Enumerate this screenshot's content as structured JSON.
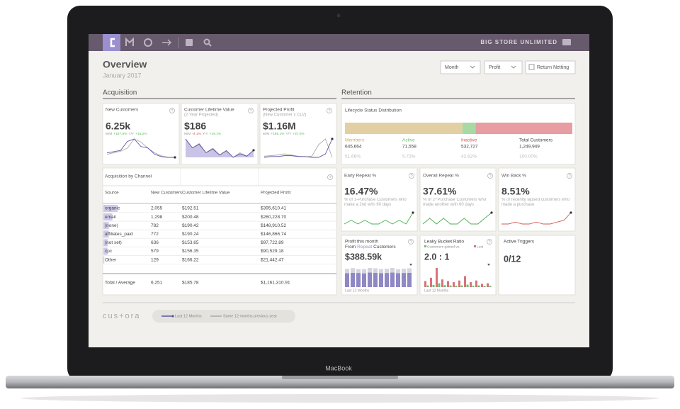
{
  "device_label": "MacBook",
  "nav": {
    "brand": "BIG STORE UNLIMITED"
  },
  "header": {
    "title": "Overview",
    "subtitle": "January 2017"
  },
  "controls": {
    "period": "Month",
    "metric": "Profit",
    "checkbox": "Return Netting"
  },
  "acquisition": {
    "title": "Acquisition",
    "kpis": [
      {
        "title": "New Customers",
        "value": "6.25k",
        "mm_label": "M/M",
        "mm": "+167.5%",
        "yy_label": "Y/Y",
        "yy": "+15.2%",
        "trend": [
          12,
          14,
          16,
          30,
          34,
          22,
          20,
          10,
          6,
          5,
          5
        ],
        "trend_prev": [
          8,
          9,
          10,
          12,
          18,
          16,
          12,
          9,
          7,
          6,
          6
        ]
      },
      {
        "title": "Customer Lifetime Value",
        "subtitle": "(2 Year Projected)",
        "value": "$186",
        "mm_label": "M/M",
        "mm": "-4.1%",
        "yy_label": "Y/Y",
        "yy": "+19.1%",
        "trend": [
          75,
          60,
          66,
          52,
          58,
          48,
          55,
          44,
          50,
          46,
          56
        ],
        "trend_prev": [
          50,
          42,
          46,
          38,
          42,
          36,
          40,
          34,
          38,
          35,
          40
        ]
      },
      {
        "title": "Projected Profit",
        "subtitle": "(New Customer x CLV)",
        "value": "$1.16M",
        "mm_label": "M/M",
        "mm": "+185.1%",
        "yy_label": "Y/Y",
        "yy": "+37.0%",
        "trend": [
          8,
          9,
          9,
          10,
          10,
          9,
          9,
          8,
          8,
          12,
          30
        ],
        "trend_prev": [
          10,
          11,
          12,
          14,
          12,
          10,
          9,
          10,
          30,
          40,
          8
        ]
      }
    ],
    "channels": {
      "title": "Acquisition by Channel",
      "columns": [
        "Source",
        "New Customers",
        "Customer Lifetime Value",
        "Projected Profit"
      ],
      "rows": [
        [
          "organic",
          "2,055",
          "$192.51",
          "$395,610.41"
        ],
        [
          "email",
          "1,298",
          "$200.48",
          "$260,228.70"
        ],
        [
          "(none)",
          "782",
          "$190.42",
          "$148,910.52"
        ],
        [
          "affiliates_paid",
          "772",
          "$190.24",
          "$146,866.74"
        ],
        [
          "(not set)",
          "636",
          "$153.65",
          "$97,722.89"
        ],
        [
          "cpc",
          "579",
          "$156.35",
          "$90,529.18"
        ],
        [
          "Other",
          "129",
          "$166.22",
          "$21,442.47"
        ]
      ],
      "total": [
        "Total / Average",
        "6,251",
        "$185.78",
        "$1,161,310.91"
      ]
    }
  },
  "retention": {
    "title": "Retention",
    "lifecycle": {
      "title": "Lifecycle Status Distribution",
      "segments": [
        {
          "name": "Members",
          "color": "#e3cfa4",
          "count": "645,664",
          "share": {
            "value": 51.66,
            "label": "51.66%"
          }
        },
        {
          "name": "Active",
          "color": "#a8d9a4",
          "count": "71,558",
          "share": {
            "value": 5.72,
            "label": "5.72%"
          }
        },
        {
          "name": "Inactive",
          "color": "#e79da1",
          "count": "532,727",
          "share": {
            "value": 42.62,
            "label": "42.62%"
          }
        }
      ],
      "total": {
        "name": "Total Customers",
        "count": "1,249,949",
        "share": {
          "value": 100,
          "label": "100.00%"
        }
      }
    },
    "rates": [
      {
        "title": "Early Repeat %",
        "value": "16.47%",
        "description": "% of 1-Purchase Customers who make a 2nd w/in 60 days",
        "color": "#4caf50",
        "trend": [
          10,
          11,
          10,
          11,
          10,
          10,
          11,
          10,
          11,
          10,
          13
        ]
      },
      {
        "title": "Overall Repeat %",
        "value": "37.61%",
        "description": "% of 2+Purchase Customers who made another w/in 60 days",
        "color": "#4caf50",
        "trend": [
          12,
          13,
          12,
          13,
          12,
          12,
          13,
          12,
          12,
          13,
          14
        ]
      },
      {
        "title": "Win Back %",
        "value": "8.51%",
        "description": "% of recently lapsed customers who made a purchase",
        "color": "#d9534f",
        "trend": [
          10,
          10,
          11,
          10,
          10,
          11,
          10,
          10,
          11,
          12,
          16
        ]
      }
    ],
    "profit": {
      "title": "Profit this month",
      "subtitle_prefix": "From",
      "highlight": "Repeat",
      "subtitle_suffix": "Customers",
      "value": "$388.59k",
      "footer": "Last 12 Months",
      "bars": [
        72,
        74,
        73,
        71,
        75,
        74,
        72,
        73,
        75,
        72,
        73,
        74
      ],
      "bars_prev": [
        22,
        24,
        20,
        22,
        24,
        23,
        21,
        22,
        24,
        20,
        22,
        23
      ]
    },
    "leaky": {
      "title": "Leaky Bucket Ratio",
      "legend": [
        {
          "name": "Customers gained vs.",
          "color": "#6cc070"
        },
        {
          "name": "Lost",
          "color": "#d9727a"
        }
      ],
      "value": "2.0 : 1",
      "footer": "Last 12 Months",
      "gained": [
        6,
        8,
        14,
        7,
        6,
        5,
        6,
        9,
        5,
        6,
        4,
        5
      ],
      "lost": [
        22,
        34,
        70,
        28,
        22,
        18,
        24,
        40,
        18,
        24,
        12,
        14
      ]
    },
    "triggers": {
      "title": "Active Triggers",
      "value": "0/12"
    }
  },
  "footer": {
    "logo": "cus+ora",
    "legend": [
      {
        "name": "Last 12 Months",
        "color": "#5b54a6"
      },
      {
        "name": "Same 12 months previous year",
        "color": "#aaaaaa"
      }
    ]
  }
}
